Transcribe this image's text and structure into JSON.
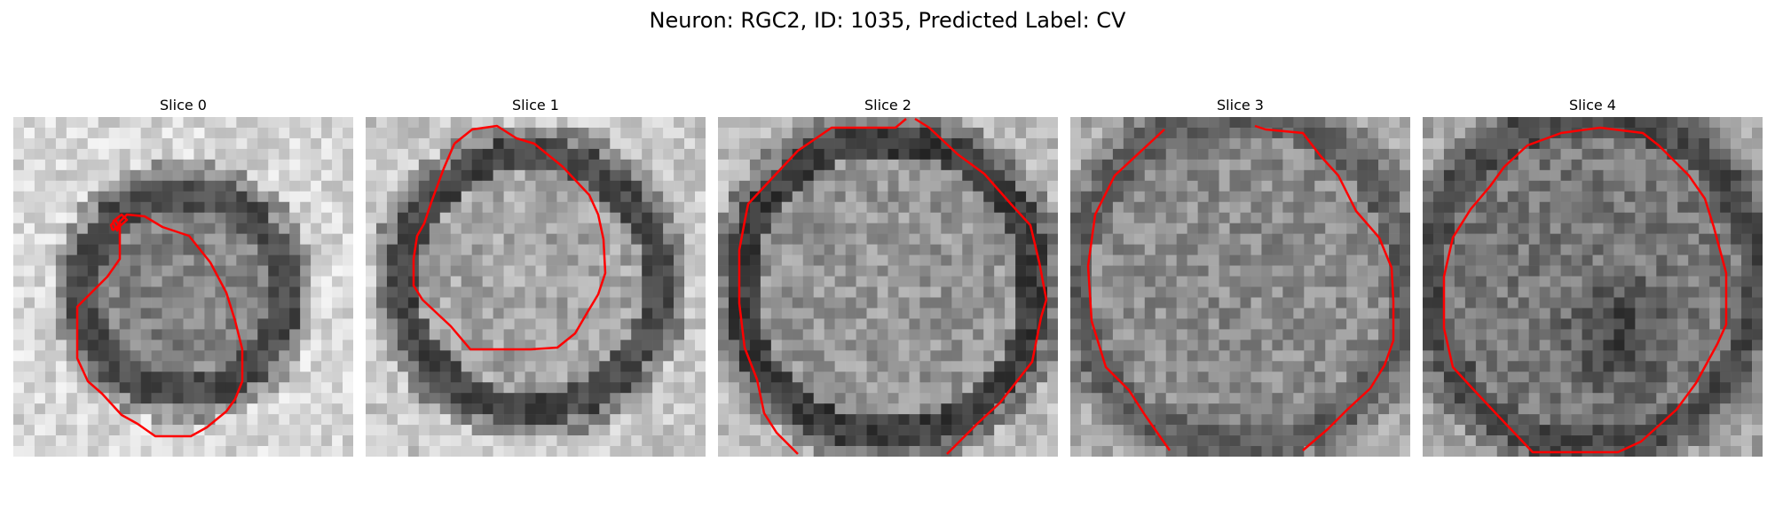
{
  "figure": {
    "title": "Neuron: RGC2, ID: 1035, Predicted Label: CV",
    "colormap": "gray",
    "contour_color": "#ff0000"
  },
  "panels": [
    {
      "title": "Slice 0"
    },
    {
      "title": "Slice 1"
    },
    {
      "title": "Slice 2"
    },
    {
      "title": "Slice 3"
    },
    {
      "title": "Slice 4"
    }
  ]
}
